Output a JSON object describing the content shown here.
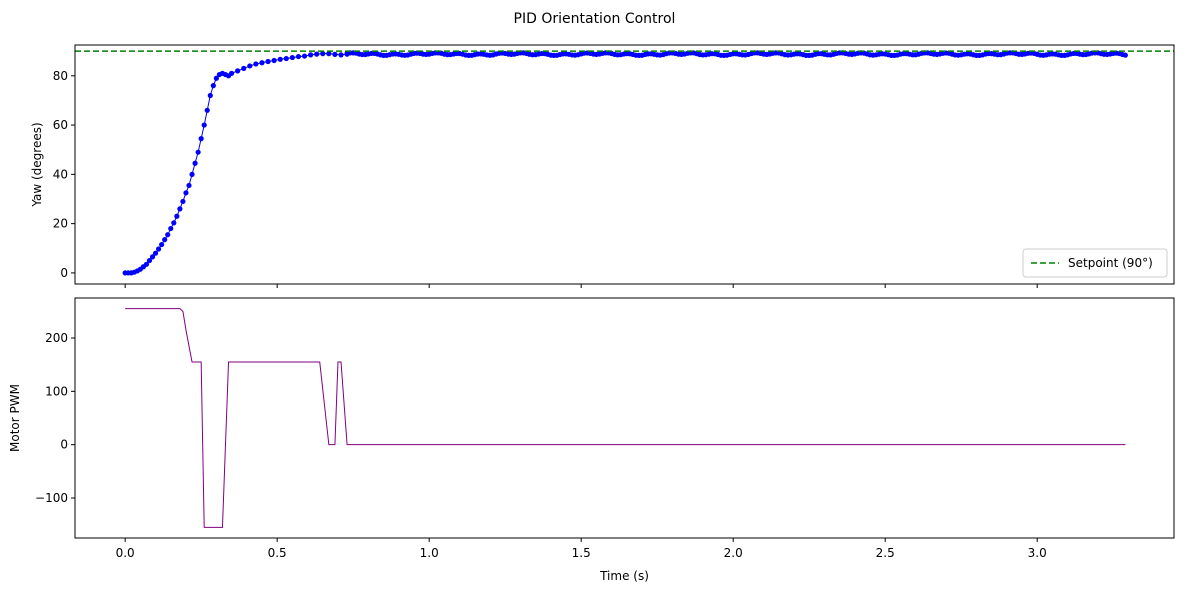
{
  "chart_data": {
    "title": "PID Orientation Control",
    "shared_xlabel": "Time (s)",
    "x_ticks": [
      "0.0",
      "0.5",
      "1.0",
      "1.5",
      "2.0",
      "2.5",
      "3.0"
    ],
    "x_tick_values": [
      0.0,
      0.5,
      1.0,
      1.5,
      2.0,
      2.5,
      3.0
    ],
    "xlim": [
      -0.165,
      3.45
    ],
    "panels": [
      {
        "type": "line",
        "ylabel": "Yaw (degrees)",
        "ylim": [
          -4.5,
          92.5
        ],
        "y_ticks": [
          "0",
          "20",
          "40",
          "60",
          "80"
        ],
        "y_tick_values": [
          0,
          20,
          40,
          60,
          80
        ],
        "legend_position": "lower-right",
        "series": [
          {
            "style": "line-markers",
            "color": "#0000ff",
            "x": [
              0.0,
              0.01,
              0.02,
              0.03,
              0.04,
              0.05,
              0.06,
              0.07,
              0.08,
              0.09,
              0.1,
              0.11,
              0.12,
              0.13,
              0.14,
              0.15,
              0.16,
              0.17,
              0.18,
              0.19,
              0.2,
              0.21,
              0.22,
              0.23,
              0.24,
              0.25,
              0.26,
              0.27,
              0.28,
              0.29,
              0.3,
              0.31,
              0.32,
              0.33,
              0.34,
              0.35,
              0.37,
              0.39,
              0.41,
              0.43,
              0.45,
              0.47,
              0.49,
              0.51,
              0.53,
              0.55,
              0.57,
              0.59,
              0.61,
              0.63,
              0.65,
              0.67,
              0.69,
              0.71,
              0.73
            ],
            "values": [
              0.0,
              0.0,
              0.0,
              0.3,
              0.8,
              1.5,
              2.5,
              3.5,
              5.0,
              6.5,
              8.0,
              9.7,
              11.5,
              13.5,
              15.5,
              18.0,
              20.3,
              23.0,
              26.0,
              29.0,
              32.5,
              35.5,
              40.0,
              44.5,
              49.0,
              54.5,
              60.0,
              66.0,
              72.0,
              76.0,
              79.0,
              80.5,
              81.0,
              80.5,
              80.0,
              81.0,
              82.0,
              83.0,
              84.0,
              84.8,
              85.3,
              85.8,
              86.2,
              86.7,
              87.0,
              87.4,
              87.8,
              88.0,
              88.5,
              88.8,
              89.0,
              89.0,
              88.7,
              88.5,
              88.8
            ]
          },
          {
            "style": "line-markers",
            "color": "#0000ff",
            "x_start": 0.73,
            "x_end": 3.29,
            "x_step": 0.01,
            "value_steady": 88.8,
            "value_min": 88.3,
            "value_max": 89.3
          },
          {
            "name": "Setpoint (90°)",
            "style": "dashed",
            "color": "#008000",
            "y": 90
          }
        ]
      },
      {
        "type": "line",
        "ylabel": "Motor PWM",
        "ylim": [
          -175,
          275
        ],
        "y_ticks": [
          "−100",
          "0",
          "100",
          "200"
        ],
        "y_tick_values": [
          -100,
          0,
          100,
          200
        ],
        "series": [
          {
            "style": "line",
            "color": "#800080",
            "x": [
              0.0,
              0.18,
              0.19,
              0.2,
              0.22,
              0.25,
              0.26,
              0.32,
              0.34,
              0.64,
              0.67,
              0.69,
              0.7,
              0.71,
              0.73,
              3.29
            ],
            "values": [
              255,
              255,
              250,
              215,
              155,
              155,
              -155,
              -155,
              155,
              155,
              0,
              0,
              155,
              155,
              0,
              0
            ]
          }
        ]
      }
    ]
  }
}
